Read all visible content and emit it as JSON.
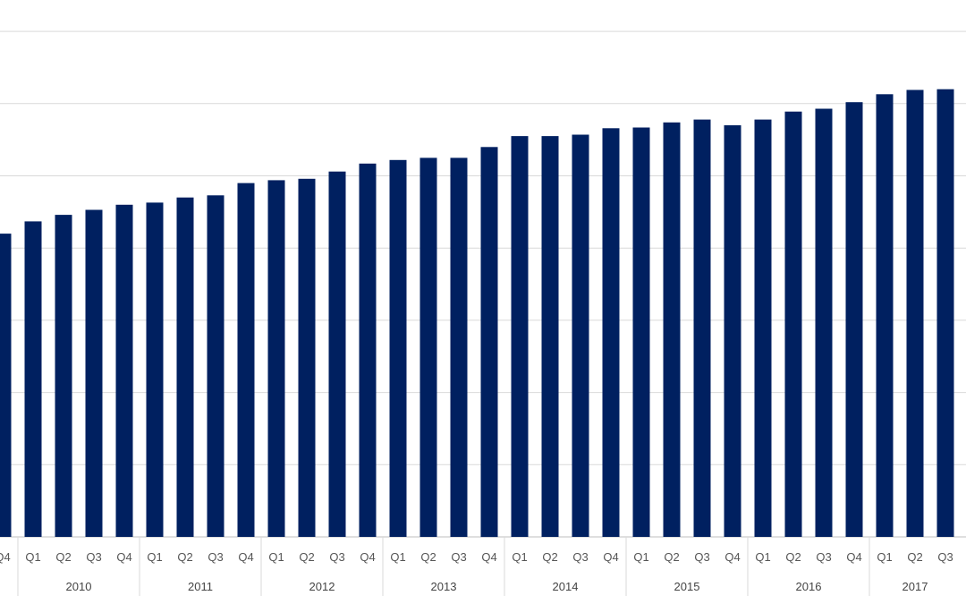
{
  "chart_data": {
    "type": "bar",
    "title": "",
    "xlabel": "",
    "ylabel": "",
    "ylim": [
      0,
      7.2
    ],
    "grid": true,
    "legend": "none",
    "bar_color": "#002060",
    "grid_color": "#d9d9d9",
    "year_groups": [
      {
        "label": "",
        "quarters": [
          "Q4"
        ]
      },
      {
        "label": "2010",
        "quarters": [
          "Q1",
          "Q2",
          "Q3",
          "Q4"
        ]
      },
      {
        "label": "2011",
        "quarters": [
          "Q1",
          "Q2",
          "Q3",
          "Q4"
        ]
      },
      {
        "label": "2012",
        "quarters": [
          "Q1",
          "Q2",
          "Q3",
          "Q4"
        ]
      },
      {
        "label": "2013",
        "quarters": [
          "Q1",
          "Q2",
          "Q3",
          "Q4"
        ]
      },
      {
        "label": "2014",
        "quarters": [
          "Q1",
          "Q2",
          "Q3",
          "Q4"
        ]
      },
      {
        "label": "2015",
        "quarters": [
          "Q1",
          "Q2",
          "Q3",
          "Q4"
        ]
      },
      {
        "label": "2016",
        "quarters": [
          "Q1",
          "Q2",
          "Q3",
          "Q4"
        ]
      },
      {
        "label": "2017",
        "quarters": [
          "Q1",
          "Q2",
          "Q3"
        ]
      }
    ],
    "values": [
      4.2,
      4.37,
      4.46,
      4.53,
      4.6,
      4.63,
      4.7,
      4.73,
      4.9,
      4.94,
      4.96,
      5.06,
      5.17,
      5.22,
      5.25,
      5.25,
      5.4,
      5.55,
      5.55,
      5.57,
      5.66,
      5.67,
      5.74,
      5.78,
      5.7,
      5.78,
      5.89,
      5.93,
      6.02,
      6.13,
      6.19,
      6.2
    ]
  }
}
